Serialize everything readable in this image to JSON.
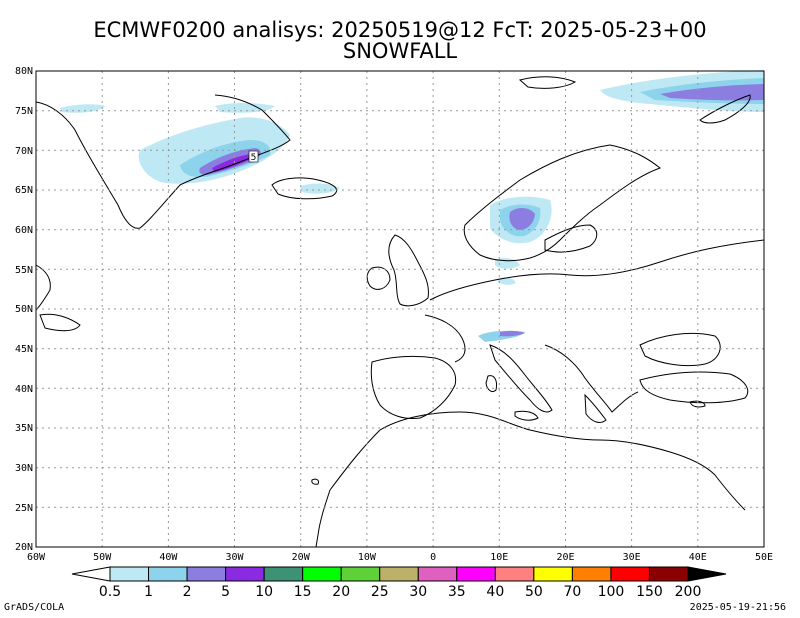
{
  "title_line1": "ECMWF0200 analisys: 20250519@12 FcT: 2025-05-23+00",
  "title_line2": "SNOWFALL",
  "lat_labels": [
    "80N",
    "75N",
    "70N",
    "65N",
    "60N",
    "55N",
    "50N",
    "45N",
    "40N",
    "35N",
    "30N",
    "25N",
    "20N"
  ],
  "lon_labels": [
    "60W",
    "50W",
    "40W",
    "30W",
    "20W",
    "10W",
    "0",
    "10E",
    "20E",
    "30E",
    "40E",
    "50E"
  ],
  "colorbar": {
    "labels": [
      "0.5",
      "1",
      "2",
      "5",
      "10",
      "15",
      "20",
      "25",
      "30",
      "35",
      "40",
      "50",
      "70",
      "100",
      "150",
      "200"
    ],
    "colors": [
      "#bfe8f5",
      "#8dd3ec",
      "#8c7ee0",
      "#8a2be2",
      "#3d9175",
      "#00ff00",
      "#5fd138",
      "#bdb069",
      "#e060c0",
      "#ff00ff",
      "#ff8080",
      "#ffff00",
      "#ff8000",
      "#ff0000",
      "#8b0000"
    ],
    "under_color": "#ffffff",
    "over_color": "#000000"
  },
  "contour_label": "5",
  "footer_left": "GrADS/COLA",
  "footer_right": "2025-05-19-21:56"
}
